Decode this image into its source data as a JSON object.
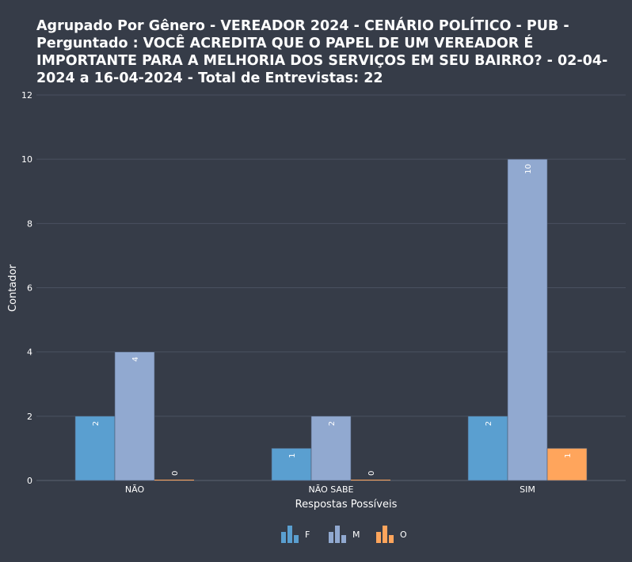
{
  "chart_data": {
    "type": "bar",
    "title": "Agrupado Por Gênero - VEREADOR 2024 - CENÁRIO POLÍTICO - PUB - Perguntado : VOCÊ ACREDITA QUE O PAPEL DE UM VEREADOR É IMPORTANTE PARA A MELHORIA DOS SERVIÇOS EM SEU BAIRRO? - 02-04-2024 a 16-04-2024 - Total de Entrevistas: 22",
    "xlabel": "Respostas Possíveis",
    "ylabel": "Contador",
    "categories": [
      "NÃO",
      "NÃO SABE",
      "SIM"
    ],
    "ylim": [
      0,
      12
    ],
    "yticks": [
      "0",
      "2",
      "4",
      "6",
      "8",
      "10",
      "12"
    ],
    "grid": true,
    "legend_position": "bottom-center",
    "series": [
      {
        "name": "F",
        "values": [
          2,
          1,
          2
        ],
        "color": "#5a9fd0"
      },
      {
        "name": "M",
        "values": [
          4,
          2,
          10
        ],
        "color": "#91a9d0"
      },
      {
        "name": "O",
        "values": [
          0,
          0,
          1
        ],
        "color": "#ffa55c"
      }
    ]
  }
}
